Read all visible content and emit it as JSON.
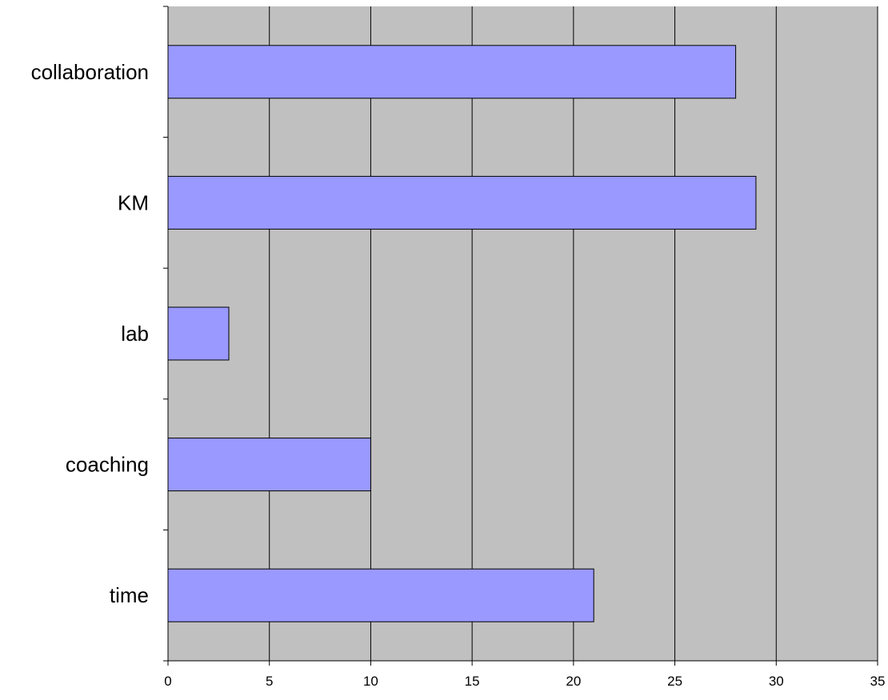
{
  "chart_data": {
    "type": "bar",
    "orientation": "horizontal",
    "title": "",
    "xlabel": "",
    "ylabel": "",
    "categories": [
      "collaboration",
      "KM",
      "lab",
      "coaching",
      "time"
    ],
    "values": [
      28,
      29,
      3,
      10,
      21
    ],
    "xlim": [
      0,
      35
    ],
    "xticks": [
      0,
      5,
      10,
      15,
      20,
      25,
      30,
      35
    ],
    "xtick_labels": [
      "0",
      "5",
      "10",
      "15",
      "20",
      "25",
      "30",
      "35"
    ],
    "grid": "vertical",
    "legend": "none",
    "colors": {
      "bar_fill": "#9999ff",
      "bar_stroke": "#000000",
      "plot_background": "#c0c0c0",
      "gridline": "#000000",
      "axis": "#000000"
    }
  }
}
